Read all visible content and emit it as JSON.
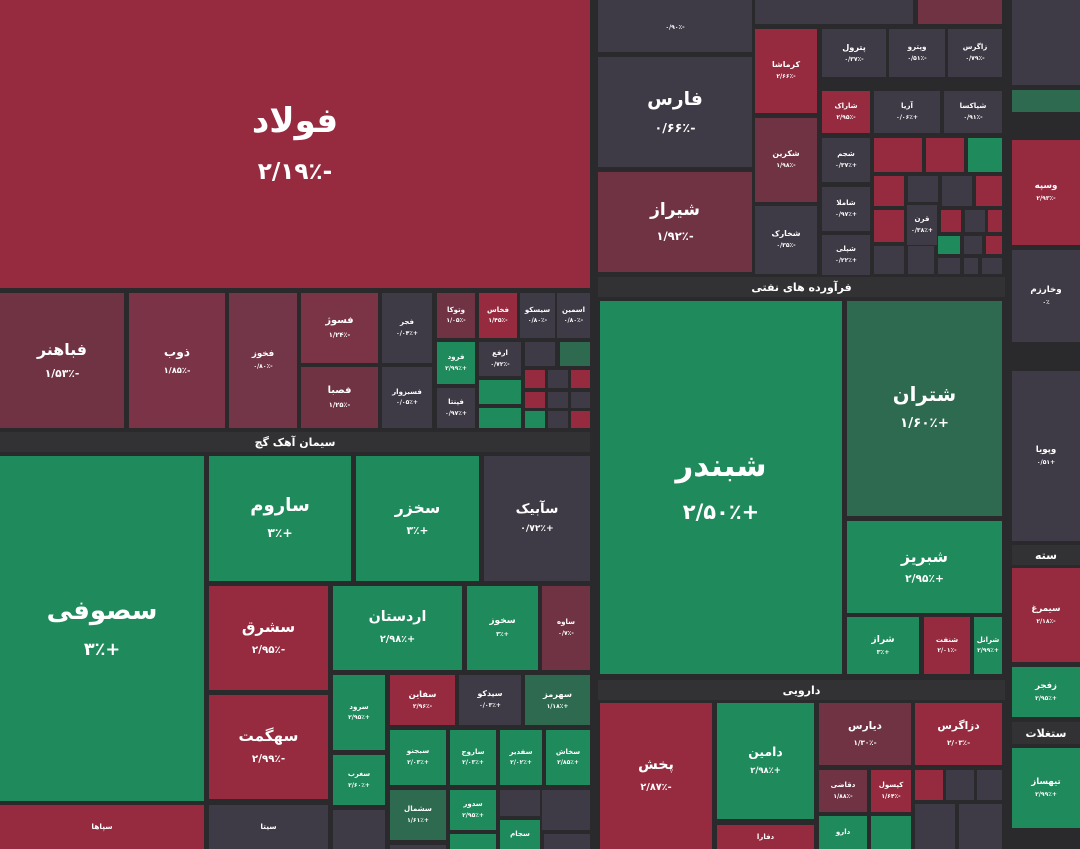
{
  "sectors": [
    "سیمان آهک گچ",
    "فرآورده های نفتی",
    "دارویی",
    "سته",
    "ستغلات"
  ],
  "tiles": [
    {
      "name": "فولاد",
      "change": "-۲/۱۹٪"
    },
    {
      "name": "فباهنر",
      "change": "-۱/۵۳٪"
    },
    {
      "name": "ذوب",
      "change": "-۱/۸۵٪"
    },
    {
      "name": "فخوز",
      "change": "-۰/۸۰٪"
    },
    {
      "name": "فسوژ",
      "change": "-۱/۲۴٪"
    },
    {
      "name": "فصبا",
      "change": "-۱/۲۵٪"
    },
    {
      "name": "فجر",
      "change": "+۰/۰۴٪"
    },
    {
      "name": "فسبزوار",
      "change": "+۰/۰۵٪"
    },
    {
      "name": "وتوکا",
      "change": "-۱/۰۵٪"
    },
    {
      "name": "فخاس",
      "change": "-۱/۴۵٪"
    },
    {
      "name": "سیسکو",
      "change": "-۰/۸۰٪"
    },
    {
      "name": "اسمین",
      "change": "-۰/۸۰٪"
    },
    {
      "name": "فرود",
      "change": "+۲/۹۹٪"
    },
    {
      "name": "فپنتا",
      "change": "+۰/۹۷٪"
    },
    {
      "name": "ارفع",
      "change": "-۰/۷۲٪"
    },
    {
      "name": "سصوفی",
      "change": "+۳٪"
    },
    {
      "name": "ساروم",
      "change": "+۳٪"
    },
    {
      "name": "سخزر",
      "change": "+۳٪"
    },
    {
      "name": "سآبیک",
      "change": "+۰/۷۲٪"
    },
    {
      "name": "سشرق",
      "change": "-۲/۹۵٪"
    },
    {
      "name": "سهگمت",
      "change": "-۲/۹۹٪"
    },
    {
      "name": "اردستان",
      "change": "+۲/۹۸٪"
    },
    {
      "name": "سخوز",
      "change": "+۳٪"
    },
    {
      "name": "ساوه",
      "change": "-۰/۷٪"
    },
    {
      "name": "سرود",
      "change": "+۲/۹۵٪"
    },
    {
      "name": "سفاین",
      "change": "-۲/۹۶٪"
    },
    {
      "name": "سیدکو",
      "change": "+۰/۰۳٪"
    },
    {
      "name": "سهرمز",
      "change": "+۱/۱۸٪"
    },
    {
      "name": "سبجنو",
      "change": "+۲/۰۳٪"
    },
    {
      "name": "ساروج",
      "change": "+۲/۰۳٪"
    },
    {
      "name": "سفدیر",
      "change": "+۲/۰۲٪"
    },
    {
      "name": "سخاش",
      "change": "+۲/۸۵٪"
    },
    {
      "name": "سغرب",
      "change": "+۲/۶۰٪"
    },
    {
      "name": "سشمال",
      "change": "+۱/۶۱٪"
    },
    {
      "name": "سدور",
      "change": "+۲/۹۵٪"
    },
    {
      "name": "سجام"
    },
    {
      "name": "سپاها"
    },
    {
      "name": "سیتا"
    },
    {
      "change": "-۰/۹۰٪"
    },
    {
      "name": "فارس",
      "change": "-۰/۶۶٪"
    },
    {
      "name": "شیراز",
      "change": "-۱/۹۲٪"
    },
    {
      "name": "کرماشا",
      "change": "-۲/۶۶٪"
    },
    {
      "name": "پترول",
      "change": "-۰/۳۷٪"
    },
    {
      "name": "وپترو",
      "change": "-۰/۵۱٪"
    },
    {
      "name": "زاگرس",
      "change": "-۰/۷۹٪"
    },
    {
      "name": "شاراک",
      "change": "-۲/۹۵٪"
    },
    {
      "name": "آریا",
      "change": "+۰/۰۶٪"
    },
    {
      "name": "شپاکسا",
      "change": "-۰/۹۱٪"
    },
    {
      "name": "شکرین",
      "change": "-۱/۹۸٪"
    },
    {
      "name": "شخارک",
      "change": "-۰/۳۵٪"
    },
    {
      "name": "شجم",
      "change": "+۰/۳۷٪"
    },
    {
      "name": "شاملا",
      "change": "+۰/۹۷٪"
    },
    {
      "name": "شپلی",
      "change": "+۰/۲۲٪"
    },
    {
      "name": "قرن",
      "change": "+۰/۳۸٪"
    },
    {
      "name": "شبندر",
      "change": "+۲/۵۰٪"
    },
    {
      "name": "شتران",
      "change": "+۱/۶۰٪"
    },
    {
      "name": "شبریز",
      "change": "+۲/۹۵٪"
    },
    {
      "name": "شراز",
      "change": "+۳٪"
    },
    {
      "name": "شنفت",
      "change": "-۲/۰۱٪"
    },
    {
      "name": "شرانل",
      "change": "+۲/۹۹٪"
    },
    {
      "name": "پخش",
      "change": "-۲/۸۷٪"
    },
    {
      "name": "دامین",
      "change": "+۲/۹۸٪"
    },
    {
      "name": "دیارس",
      "change": "-۱/۳۰٪"
    },
    {
      "name": "دزاگرس",
      "change": "-۲/۰۳٪"
    },
    {
      "name": "دقاضی",
      "change": "-۱/۸۸٪"
    },
    {
      "name": "کپسول",
      "change": "-۱/۶۴٪"
    },
    {
      "name": "دارو"
    },
    {
      "name": "دفارا"
    },
    {
      "name": "وسپه",
      "change": "-۲/۹۳٪"
    },
    {
      "name": "وخارزم",
      "change": "۰٪"
    },
    {
      "name": "وپویا",
      "change": "+۰/۵۱"
    },
    {
      "name": "سیمرغ",
      "change": "-۲/۱۸٪"
    },
    {
      "name": "زفجر",
      "change": "+۲/۹۵٪"
    },
    {
      "name": "تیهساز",
      "change": "+۲/۹۹٪"
    }
  ]
}
